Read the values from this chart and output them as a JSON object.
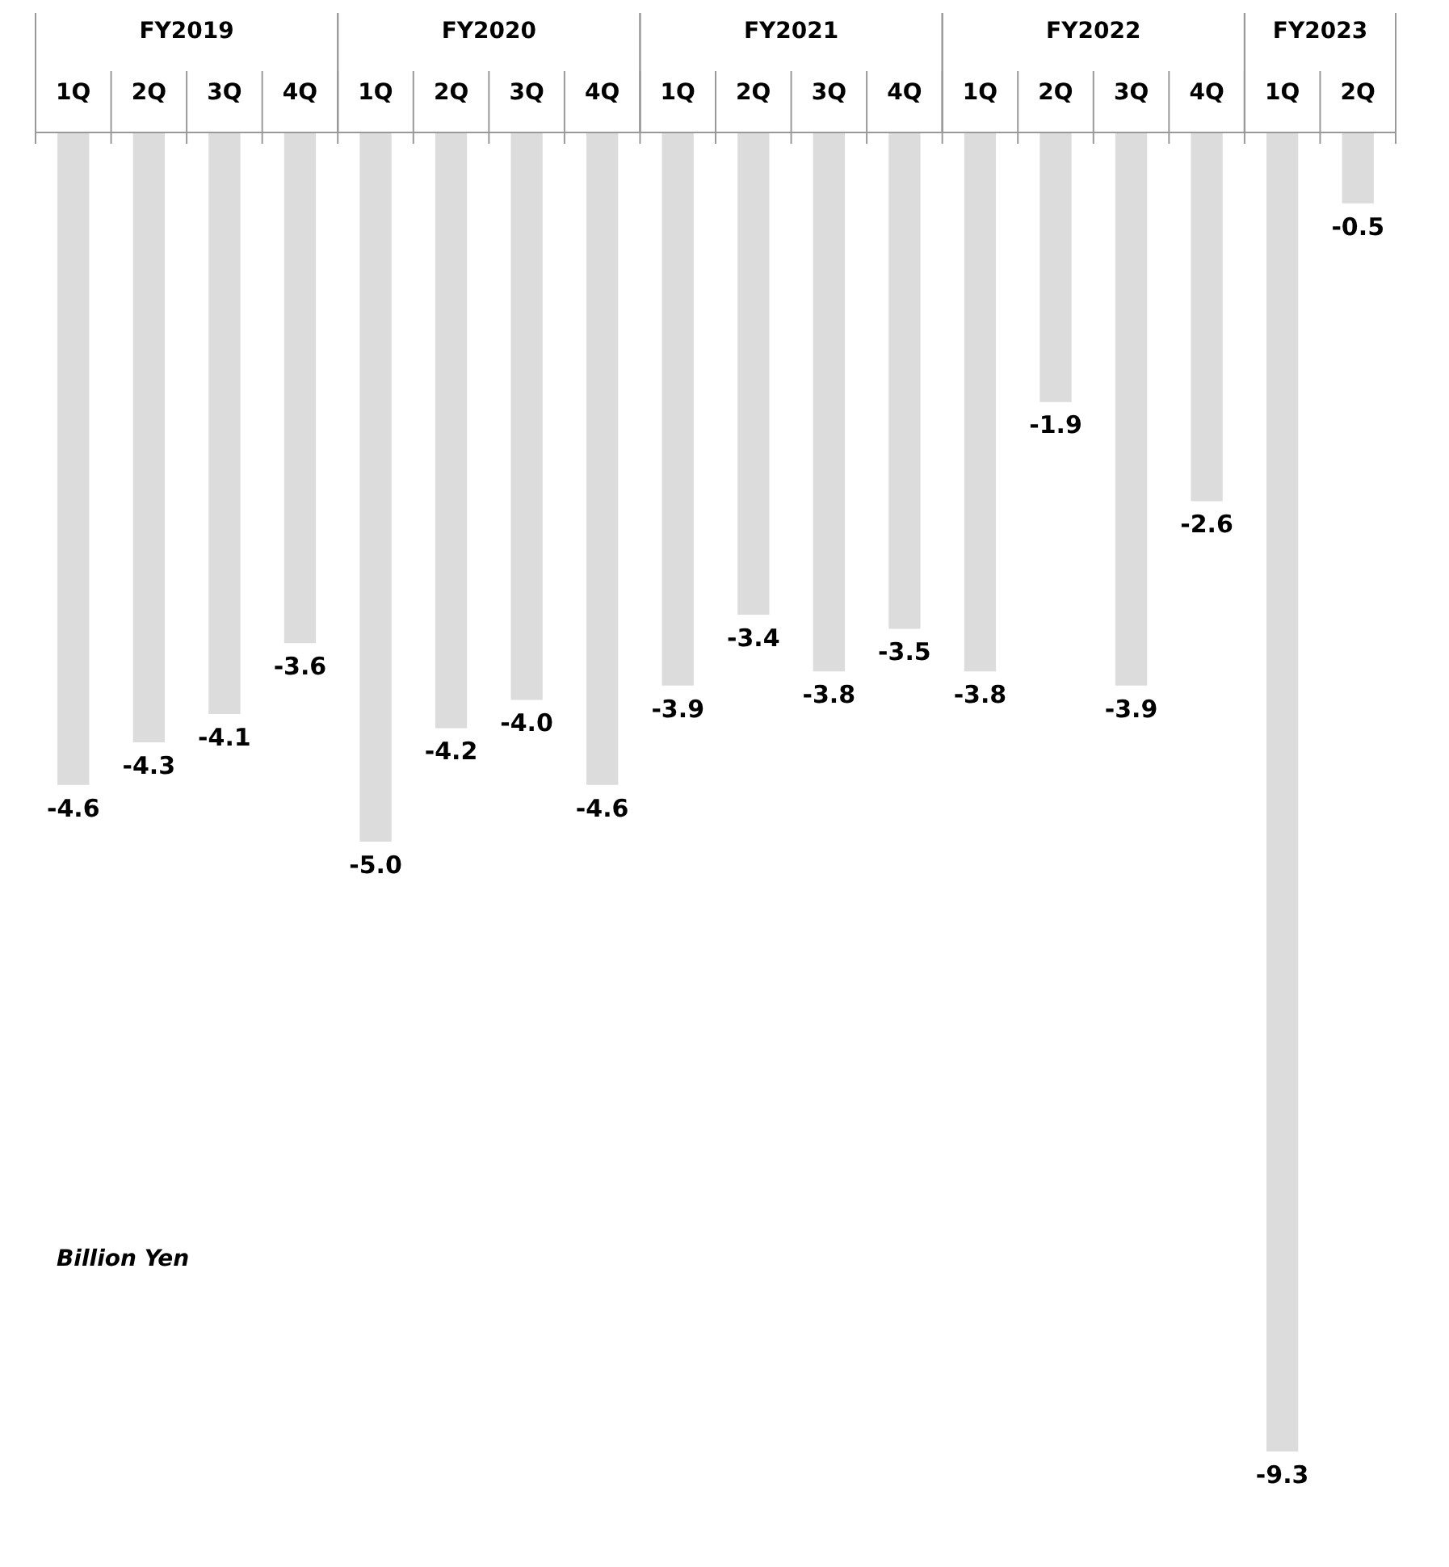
{
  "chart_data": {
    "type": "bar",
    "ylabel": "Billion Yen",
    "categories": [
      "1Q",
      "2Q",
      "3Q",
      "4Q",
      "1Q",
      "2Q",
      "3Q",
      "4Q",
      "1Q",
      "2Q",
      "3Q",
      "4Q",
      "1Q",
      "2Q",
      "3Q",
      "4Q",
      "1Q",
      "2Q"
    ],
    "values": [
      -4.6,
      -4.3,
      -4.1,
      -3.6,
      -5.0,
      -4.2,
      -4.0,
      -4.6,
      -3.9,
      -3.4,
      -3.8,
      -3.5,
      -3.8,
      -1.9,
      -3.9,
      -2.6,
      -9.3,
      -0.5
    ],
    "color": "#dcdcdc",
    "annotations": [
      "FY2019",
      "FY2020",
      "FY2021",
      "FY2022",
      "FY2023"
    ],
    "value_labels": [
      "-4.6",
      "-4.3",
      "-4.1",
      "-3.6",
      "-5.0",
      "-4.2",
      "-4.0",
      "-4.6",
      "-3.9",
      "-3.4",
      "-3.8",
      "-3.5",
      "-3.8",
      "-1.9",
      "-3.9",
      "-2.6",
      "-9.3",
      "-0.5"
    ],
    "legend": false
  }
}
